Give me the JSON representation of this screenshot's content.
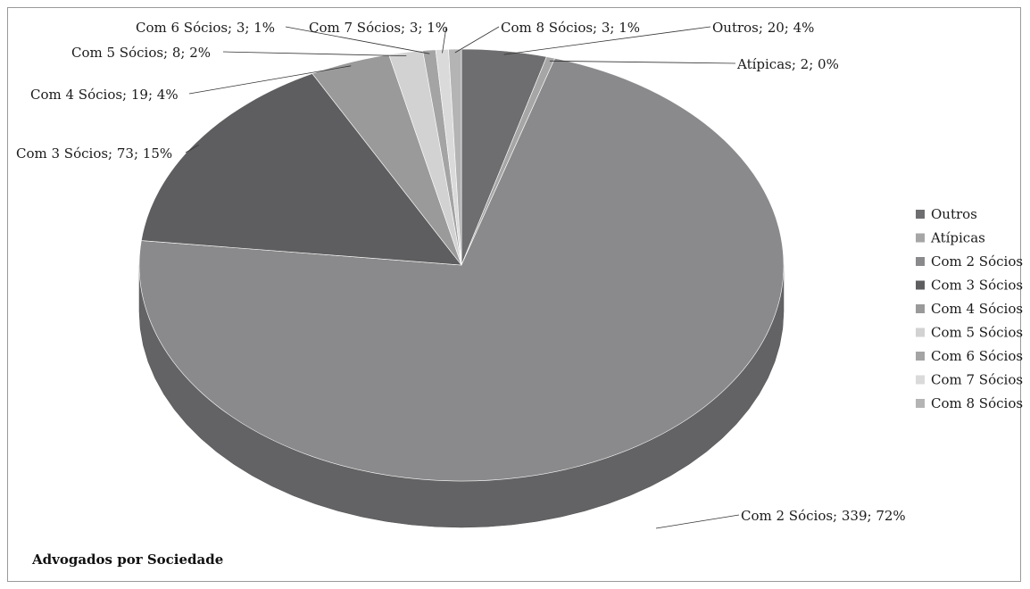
{
  "chart_data": {
    "type": "pie",
    "title": "Advogados por Sociedade",
    "legend_position": "right",
    "slices": [
      {
        "name": "Outros",
        "value": 20,
        "percent": "4%",
        "label": "Outros; 20; 4%",
        "color": "#6e6e70"
      },
      {
        "name": "Atípicas",
        "value": 2,
        "percent": "0%",
        "label": "Atípicas; 2; 0%",
        "color": "#a6a6a6"
      },
      {
        "name": "Com 2 Sócios",
        "value": 339,
        "percent": "72%",
        "label": "Com 2 Sócios; 339; 72%",
        "color": "#8a8a8c"
      },
      {
        "name": "Com 3 Sócios",
        "value": 73,
        "percent": "15%",
        "label": "Com 3 Sócios; 73; 15%",
        "color": "#5e5e60"
      },
      {
        "name": "Com 4 Sócios",
        "value": 19,
        "percent": "4%",
        "label": "Com 4 Sócios; 19; 4%",
        "color": "#9a9a9a"
      },
      {
        "name": "Com 5 Sócios",
        "value": 8,
        "percent": "2%",
        "label": "Com 5 Sócios; 8; 2%",
        "color": "#d2d2d2"
      },
      {
        "name": "Com 6 Sócios",
        "value": 3,
        "percent": "1%",
        "label": "Com 6 Sócios; 3; 1%",
        "color": "#a4a4a4"
      },
      {
        "name": "Com 7 Sócios",
        "value": 3,
        "percent": "1%",
        "label": "Com 7 Sócios; 3; 1%",
        "color": "#dadada"
      },
      {
        "name": "Com 8 Sócios",
        "value": 3,
        "percent": "1%",
        "label": "Com 8 Sócios; 3; 1%",
        "color": "#b4b4b4"
      }
    ]
  }
}
